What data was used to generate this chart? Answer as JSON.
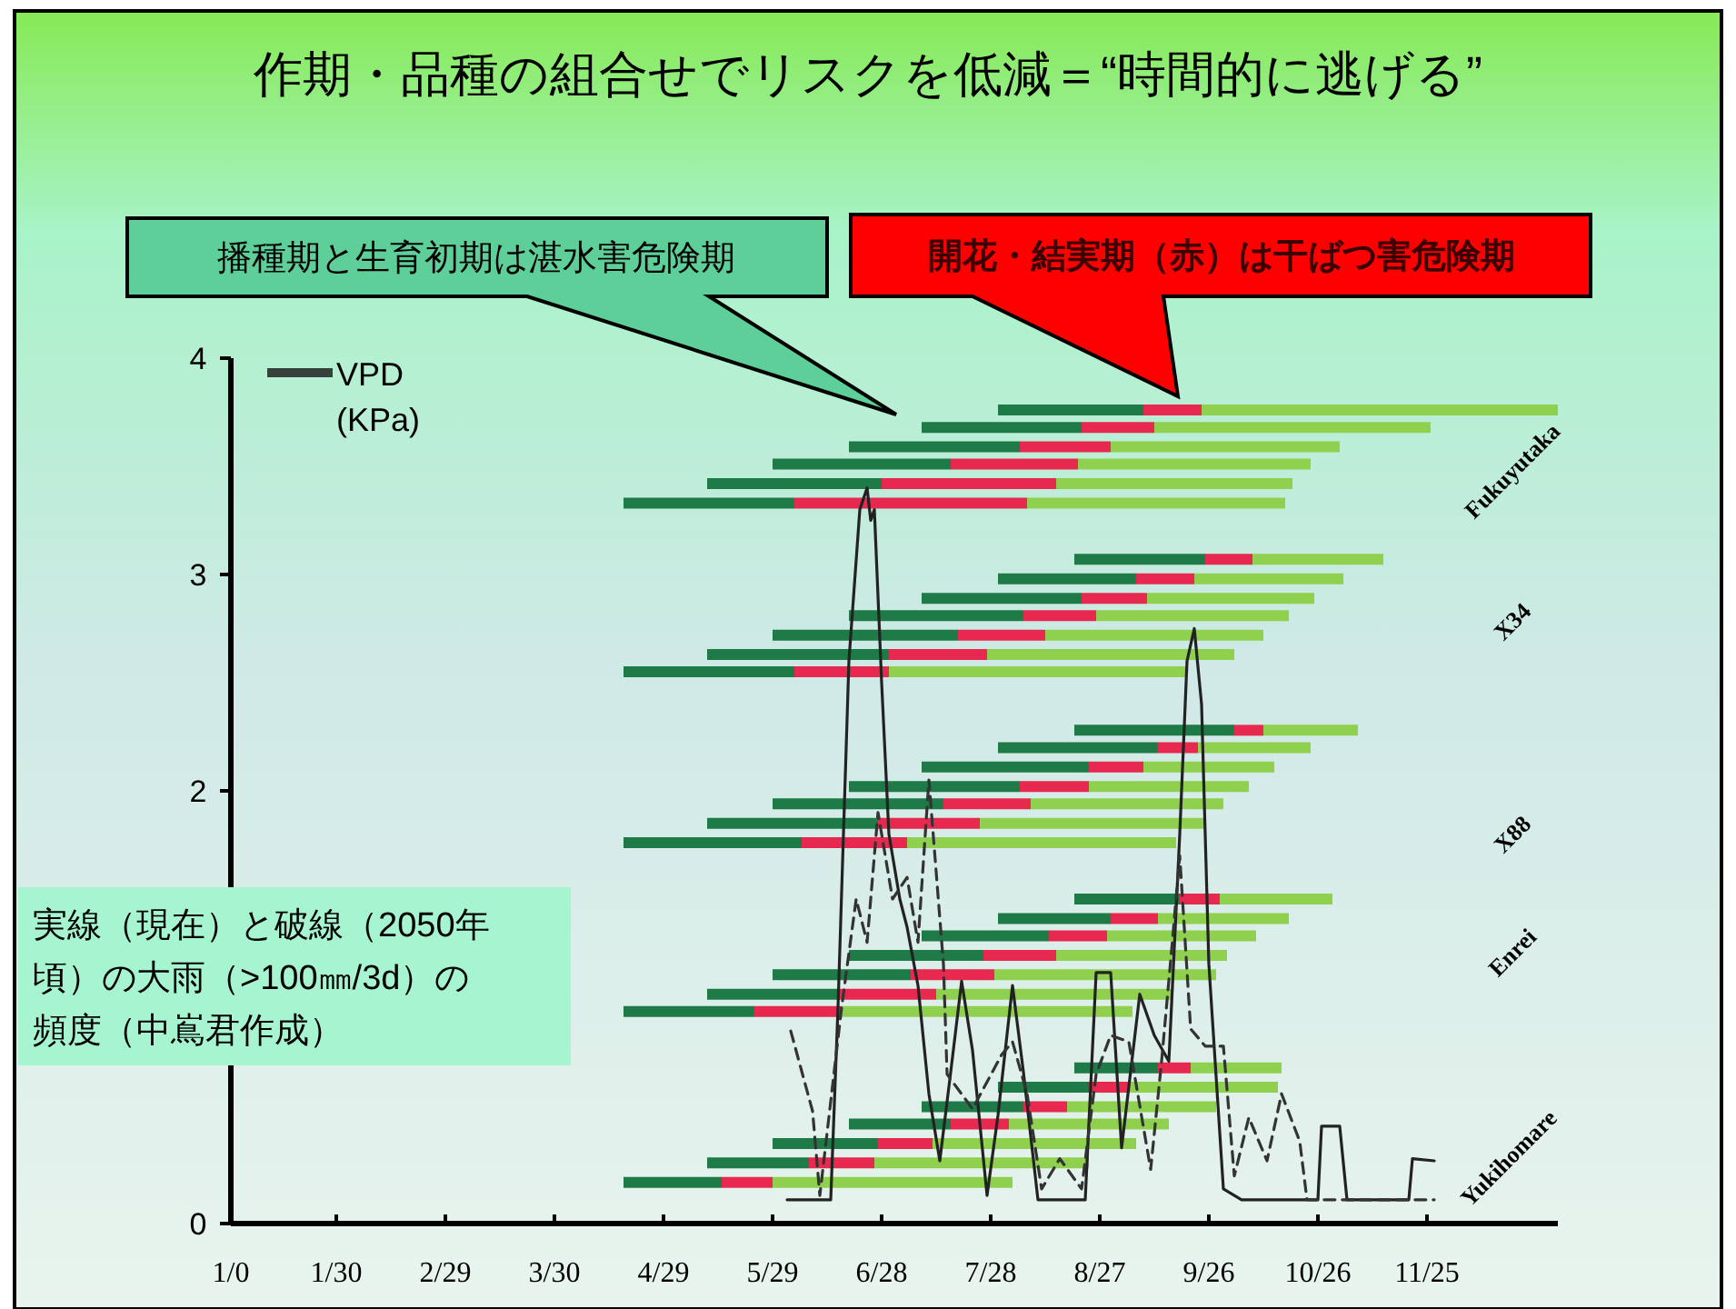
{
  "chart_data": {
    "type": "line",
    "title": "作期・品種の組合せでリスクを低減＝“時間的に逃げる”",
    "xlim": [
      "--01-01",
      "--12-31"
    ],
    "xticks": [
      {
        "value": "--01-01",
        "label": "1/0"
      },
      {
        "value": "--01-30",
        "label": "1/30"
      },
      {
        "value": "--02-29",
        "label": "2/29"
      },
      {
        "value": "--03-30",
        "label": "3/30"
      },
      {
        "value": "--04-29",
        "label": "4/29"
      },
      {
        "value": "--05-29",
        "label": "5/29"
      },
      {
        "value": "--06-28",
        "label": "6/28"
      },
      {
        "value": "--07-28",
        "label": "7/28"
      },
      {
        "value": "--08-27",
        "label": "8/27"
      },
      {
        "value": "--09-26",
        "label": "9/26"
      },
      {
        "value": "--10-26",
        "label": "10/26"
      },
      {
        "value": "--11-25",
        "label": "11/25"
      }
    ],
    "ylim": [
      0,
      4
    ],
    "yticks": [
      0,
      2,
      3,
      4
    ],
    "grid": false,
    "legend": "top left",
    "annotations": [
      "播種期と生育初期は湛水害危険期",
      "開花・結実期（赤）は干ばつ害危険期",
      "実線（現在）と破線（2050年頃）の大雨（>100㎜/3d）の頻度（中嶌君作成）",
      "Fukuyutaka",
      "X34",
      "X88",
      "Enrei",
      "Yukihomare"
    ],
    "series": [
      {
        "color": "#1e7a46",
        "x": [
          "--07-30",
          "--09-08"
        ],
        "values": [
          3.76,
          3.76
        ]
      },
      {
        "color": "#e8294f",
        "x": [
          "--09-08",
          "--09-24"
        ],
        "values": [
          3.76,
          3.76
        ]
      },
      {
        "color": "#8fd14f",
        "x": [
          "--09-24",
          "--12-31"
        ],
        "values": [
          3.76,
          3.76
        ]
      },
      {
        "color": "#1e7a46",
        "x": [
          "--07-09",
          "--08-22"
        ],
        "values": [
          3.68,
          3.68
        ]
      },
      {
        "color": "#e8294f",
        "x": [
          "--08-22",
          "--09-11"
        ],
        "values": [
          3.68,
          3.68
        ]
      },
      {
        "color": "#8fd14f",
        "x": [
          "--09-11",
          "--11-26"
        ],
        "values": [
          3.68,
          3.68
        ]
      },
      {
        "color": "#1e7a46",
        "x": [
          "--06-19",
          "--08-05"
        ],
        "values": [
          3.59,
          3.59
        ]
      },
      {
        "color": "#e8294f",
        "x": [
          "--08-05",
          "--08-30"
        ],
        "values": [
          3.59,
          3.59
        ]
      },
      {
        "color": "#8fd14f",
        "x": [
          "--08-30",
          "--11-01"
        ],
        "values": [
          3.59,
          3.59
        ]
      },
      {
        "color": "#1e7a46",
        "x": [
          "--05-29",
          "--07-17"
        ],
        "values": [
          3.51,
          3.51
        ]
      },
      {
        "color": "#e8294f",
        "x": [
          "--07-17",
          "--08-21"
        ],
        "values": [
          3.51,
          3.51
        ]
      },
      {
        "color": "#8fd14f",
        "x": [
          "--08-21",
          "--10-24"
        ],
        "values": [
          3.51,
          3.51
        ]
      },
      {
        "color": "#1e7a46",
        "x": [
          "--05-11",
          "--06-28"
        ],
        "values": [
          3.42,
          3.42
        ]
      },
      {
        "color": "#e8294f",
        "x": [
          "--06-28",
          "--08-15"
        ],
        "values": [
          3.42,
          3.42
        ]
      },
      {
        "color": "#8fd14f",
        "x": [
          "--08-15",
          "--10-19"
        ],
        "values": [
          3.42,
          3.42
        ]
      },
      {
        "color": "#1e7a46",
        "x": [
          "--04-18",
          "--06-04"
        ],
        "values": [
          3.33,
          3.33
        ]
      },
      {
        "color": "#e8294f",
        "x": [
          "--06-04",
          "--08-07"
        ],
        "values": [
          3.33,
          3.33
        ]
      },
      {
        "color": "#8fd14f",
        "x": [
          "--08-07",
          "--10-17"
        ],
        "values": [
          3.33,
          3.33
        ]
      },
      {
        "color": "#1e7a46",
        "x": [
          "--08-20",
          "--09-25"
        ],
        "values": [
          3.07,
          3.07
        ]
      },
      {
        "color": "#e8294f",
        "x": [
          "--09-25",
          "--10-08"
        ],
        "values": [
          3.07,
          3.07
        ]
      },
      {
        "color": "#8fd14f",
        "x": [
          "--10-08",
          "--11-13"
        ],
        "values": [
          3.07,
          3.07
        ]
      },
      {
        "color": "#1e7a46",
        "x": [
          "--07-30",
          "--09-06"
        ],
        "values": [
          2.98,
          2.98
        ]
      },
      {
        "color": "#e8294f",
        "x": [
          "--09-06",
          "--09-22"
        ],
        "values": [
          2.98,
          2.98
        ]
      },
      {
        "color": "#8fd14f",
        "x": [
          "--09-22",
          "--11-02"
        ],
        "values": [
          2.98,
          2.98
        ]
      },
      {
        "color": "#1e7a46",
        "x": [
          "--07-09",
          "--08-22"
        ],
        "values": [
          2.89,
          2.89
        ]
      },
      {
        "color": "#e8294f",
        "x": [
          "--08-22",
          "--09-09"
        ],
        "values": [
          2.89,
          2.89
        ]
      },
      {
        "color": "#8fd14f",
        "x": [
          "--09-09",
          "--10-25"
        ],
        "values": [
          2.89,
          2.89
        ]
      },
      {
        "color": "#1e7a46",
        "x": [
          "--06-19",
          "--08-06"
        ],
        "values": [
          2.81,
          2.81
        ]
      },
      {
        "color": "#e8294f",
        "x": [
          "--08-06",
          "--08-26"
        ],
        "values": [
          2.81,
          2.81
        ]
      },
      {
        "color": "#8fd14f",
        "x": [
          "--08-26",
          "--10-18"
        ],
        "values": [
          2.81,
          2.81
        ]
      },
      {
        "color": "#1e7a46",
        "x": [
          "--05-29",
          "--07-19"
        ],
        "values": [
          2.72,
          2.72
        ]
      },
      {
        "color": "#e8294f",
        "x": [
          "--07-19",
          "--08-12"
        ],
        "values": [
          2.72,
          2.72
        ]
      },
      {
        "color": "#8fd14f",
        "x": [
          "--08-12",
          "--10-11"
        ],
        "values": [
          2.72,
          2.72
        ]
      },
      {
        "color": "#1e7a46",
        "x": [
          "--05-11",
          "--06-30"
        ],
        "values": [
          2.63,
          2.63
        ]
      },
      {
        "color": "#e8294f",
        "x": [
          "--06-30",
          "--07-27"
        ],
        "values": [
          2.63,
          2.63
        ]
      },
      {
        "color": "#8fd14f",
        "x": [
          "--07-27",
          "--10-03"
        ],
        "values": [
          2.63,
          2.63
        ]
      },
      {
        "color": "#1e7a46",
        "x": [
          "--04-18",
          "--06-04"
        ],
        "values": [
          2.55,
          2.55
        ]
      },
      {
        "color": "#e8294f",
        "x": [
          "--06-04",
          "--06-30"
        ],
        "values": [
          2.55,
          2.55
        ]
      },
      {
        "color": "#8fd14f",
        "x": [
          "--06-30",
          "--09-20"
        ],
        "values": [
          2.55,
          2.55
        ]
      },
      {
        "color": "#1e7a46",
        "x": [
          "--08-20",
          "--10-03"
        ],
        "values": [
          2.28,
          2.28
        ]
      },
      {
        "color": "#e8294f",
        "x": [
          "--10-03",
          "--10-11"
        ],
        "values": [
          2.28,
          2.28
        ]
      },
      {
        "color": "#8fd14f",
        "x": [
          "--10-11",
          "--11-06"
        ],
        "values": [
          2.28,
          2.28
        ]
      },
      {
        "color": "#1e7a46",
        "x": [
          "--07-30",
          "--09-12"
        ],
        "values": [
          2.2,
          2.2
        ]
      },
      {
        "color": "#e8294f",
        "x": [
          "--09-12",
          "--09-23"
        ],
        "values": [
          2.2,
          2.2
        ]
      },
      {
        "color": "#8fd14f",
        "x": [
          "--09-23",
          "--10-24"
        ],
        "values": [
          2.2,
          2.2
        ]
      },
      {
        "color": "#1e7a46",
        "x": [
          "--07-09",
          "--08-24"
        ],
        "values": [
          2.11,
          2.11
        ]
      },
      {
        "color": "#e8294f",
        "x": [
          "--08-24",
          "--09-08"
        ],
        "values": [
          2.11,
          2.11
        ]
      },
      {
        "color": "#8fd14f",
        "x": [
          "--09-08",
          "--10-14"
        ],
        "values": [
          2.11,
          2.11
        ]
      },
      {
        "color": "#1e7a46",
        "x": [
          "--06-19",
          "--08-05"
        ],
        "values": [
          2.02,
          2.02
        ]
      },
      {
        "color": "#e8294f",
        "x": [
          "--08-05",
          "--08-24"
        ],
        "values": [
          2.02,
          2.02
        ]
      },
      {
        "color": "#8fd14f",
        "x": [
          "--08-24",
          "--10-07"
        ],
        "values": [
          2.02,
          2.02
        ]
      },
      {
        "color": "#1e7a46",
        "x": [
          "--05-29",
          "--07-15"
        ],
        "values": [
          1.94,
          1.94
        ]
      },
      {
        "color": "#e8294f",
        "x": [
          "--07-15",
          "--08-08"
        ],
        "values": [
          1.94,
          1.94
        ]
      },
      {
        "color": "#8fd14f",
        "x": [
          "--08-08",
          "--09-30"
        ],
        "values": [
          1.94,
          1.94
        ]
      },
      {
        "color": "#1e7a46",
        "x": [
          "--05-11",
          "--06-27"
        ],
        "values": [
          1.85,
          1.85
        ]
      },
      {
        "color": "#e8294f",
        "x": [
          "--06-27",
          "--07-25"
        ],
        "values": [
          1.85,
          1.85
        ]
      },
      {
        "color": "#8fd14f",
        "x": [
          "--07-25",
          "--09-25"
        ],
        "values": [
          1.85,
          1.85
        ]
      },
      {
        "color": "#1e7a46",
        "x": [
          "--04-18",
          "--06-06"
        ],
        "values": [
          1.76,
          1.76
        ]
      },
      {
        "color": "#e8294f",
        "x": [
          "--06-06",
          "--07-05"
        ],
        "values": [
          1.76,
          1.76
        ]
      },
      {
        "color": "#8fd14f",
        "x": [
          "--07-05",
          "--09-17"
        ],
        "values": [
          1.76,
          1.76
        ]
      },
      {
        "color": "#1e7a46",
        "x": [
          "--08-20",
          "--09-18"
        ],
        "values": [
          1.5,
          1.5
        ]
      },
      {
        "color": "#e8294f",
        "x": [
          "--09-18",
          "--09-29"
        ],
        "values": [
          1.5,
          1.5
        ]
      },
      {
        "color": "#8fd14f",
        "x": [
          "--09-29",
          "--10-30"
        ],
        "values": [
          1.5,
          1.5
        ]
      },
      {
        "color": "#1e7a46",
        "x": [
          "--07-30",
          "--08-30"
        ],
        "values": [
          1.41,
          1.41
        ]
      },
      {
        "color": "#e8294f",
        "x": [
          "--08-30",
          "--09-12"
        ],
        "values": [
          1.41,
          1.41
        ]
      },
      {
        "color": "#8fd14f",
        "x": [
          "--09-12",
          "--10-18"
        ],
        "values": [
          1.41,
          1.41
        ]
      },
      {
        "color": "#1e7a46",
        "x": [
          "--07-09",
          "--08-13"
        ],
        "values": [
          1.33,
          1.33
        ]
      },
      {
        "color": "#e8294f",
        "x": [
          "--08-13",
          "--08-29"
        ],
        "values": [
          1.33,
          1.33
        ]
      },
      {
        "color": "#8fd14f",
        "x": [
          "--08-29",
          "--10-09"
        ],
        "values": [
          1.33,
          1.33
        ]
      },
      {
        "color": "#1e7a46",
        "x": [
          "--06-19",
          "--07-26"
        ],
        "values": [
          1.24,
          1.24
        ]
      },
      {
        "color": "#e8294f",
        "x": [
          "--07-26",
          "--08-15"
        ],
        "values": [
          1.24,
          1.24
        ]
      },
      {
        "color": "#8fd14f",
        "x": [
          "--08-15",
          "--10-01"
        ],
        "values": [
          1.24,
          1.24
        ]
      },
      {
        "color": "#1e7a46",
        "x": [
          "--05-29",
          "--07-06"
        ],
        "values": [
          1.15,
          1.15
        ]
      },
      {
        "color": "#e8294f",
        "x": [
          "--07-06",
          "--07-29"
        ],
        "values": [
          1.15,
          1.15
        ]
      },
      {
        "color": "#8fd14f",
        "x": [
          "--07-29",
          "--09-28"
        ],
        "values": [
          1.15,
          1.15
        ]
      },
      {
        "color": "#1e7a46",
        "x": [
          "--05-11",
          "--06-16"
        ],
        "values": [
          1.06,
          1.06
        ]
      },
      {
        "color": "#e8294f",
        "x": [
          "--06-16",
          "--07-13"
        ],
        "values": [
          1.06,
          1.06
        ]
      },
      {
        "color": "#8fd14f",
        "x": [
          "--07-13",
          "--09-16"
        ],
        "values": [
          1.06,
          1.06
        ]
      },
      {
        "color": "#1e7a46",
        "x": [
          "--04-18",
          "--05-24"
        ],
        "values": [
          0.98,
          0.98
        ]
      },
      {
        "color": "#e8294f",
        "x": [
          "--05-24",
          "--06-17"
        ],
        "values": [
          0.98,
          0.98
        ]
      },
      {
        "color": "#8fd14f",
        "x": [
          "--06-17",
          "--09-05"
        ],
        "values": [
          0.98,
          0.98
        ]
      },
      {
        "color": "#1e7a46",
        "x": [
          "--08-20",
          "--09-12"
        ],
        "values": [
          0.72,
          0.72
        ]
      },
      {
        "color": "#e8294f",
        "x": [
          "--09-12",
          "--09-21"
        ],
        "values": [
          0.72,
          0.72
        ]
      },
      {
        "color": "#8fd14f",
        "x": [
          "--09-21",
          "--10-16"
        ],
        "values": [
          0.72,
          0.72
        ]
      },
      {
        "color": "#1e7a46",
        "x": [
          "--07-30",
          "--08-24"
        ],
        "values": [
          0.63,
          0.63
        ]
      },
      {
        "color": "#e8294f",
        "x": [
          "--08-24",
          "--09-04"
        ],
        "values": [
          0.63,
          0.63
        ]
      },
      {
        "color": "#8fd14f",
        "x": [
          "--09-04",
          "--10-15"
        ],
        "values": [
          0.63,
          0.63
        ]
      },
      {
        "color": "#1e7a46",
        "x": [
          "--07-09",
          "--08-06"
        ],
        "values": [
          0.54,
          0.54
        ]
      },
      {
        "color": "#e8294f",
        "x": [
          "--08-06",
          "--08-18"
        ],
        "values": [
          0.54,
          0.54
        ]
      },
      {
        "color": "#8fd14f",
        "x": [
          "--08-18",
          "--09-28"
        ],
        "values": [
          0.54,
          0.54
        ]
      },
      {
        "color": "#1e7a46",
        "x": [
          "--06-19",
          "--07-17"
        ],
        "values": [
          0.46,
          0.46
        ]
      },
      {
        "color": "#e8294f",
        "x": [
          "--07-17",
          "--08-02"
        ],
        "values": [
          0.46,
          0.46
        ]
      },
      {
        "color": "#8fd14f",
        "x": [
          "--08-02",
          "--09-15"
        ],
        "values": [
          0.46,
          0.46
        ]
      },
      {
        "color": "#1e7a46",
        "x": [
          "--05-29",
          "--06-27"
        ],
        "values": [
          0.37,
          0.37
        ]
      },
      {
        "color": "#e8294f",
        "x": [
          "--06-27",
          "--07-12"
        ],
        "values": [
          0.37,
          0.37
        ]
      },
      {
        "color": "#8fd14f",
        "x": [
          "--07-12",
          "--09-06"
        ],
        "values": [
          0.37,
          0.37
        ]
      },
      {
        "color": "#1e7a46",
        "x": [
          "--05-11",
          "--06-08"
        ],
        "values": [
          0.28,
          0.28
        ]
      },
      {
        "color": "#e8294f",
        "x": [
          "--06-08",
          "--06-26"
        ],
        "values": [
          0.28,
          0.28
        ]
      },
      {
        "color": "#8fd14f",
        "x": [
          "--06-26",
          "--08-24"
        ],
        "values": [
          0.28,
          0.28
        ]
      },
      {
        "color": "#1e7a46",
        "x": [
          "--04-18",
          "--05-15"
        ],
        "values": [
          0.19,
          0.19
        ]
      },
      {
        "color": "#e8294f",
        "x": [
          "--05-15",
          "--05-29"
        ],
        "values": [
          0.19,
          0.19
        ]
      },
      {
        "color": "#8fd14f",
        "x": [
          "--05-29",
          "--08-03"
        ],
        "values": [
          0.19,
          0.19
        ]
      },
      {
        "name": "VPD (KPa)",
        "color": "#222222",
        "line_style": "solid",
        "x": [
          "--06-02",
          "--06-14",
          "--06-16",
          "--06-19",
          "--06-22",
          "--06-24",
          "--06-25",
          "--06-26",
          "--06-28",
          "--06-30",
          "--07-03",
          "--07-05",
          "--07-08",
          "--07-11",
          "--07-14",
          "--07-17",
          "--07-20",
          "--07-23",
          "--07-27",
          "--07-30",
          "--08-03",
          "--08-06",
          "--08-10",
          "--08-23",
          "--08-26",
          "--08-30",
          "--09-02",
          "--09-07",
          "--09-11",
          "--09-15",
          "--09-18",
          "--09-20",
          "--09-22",
          "--09-24",
          "--09-26",
          "--09-30",
          "--10-05",
          "--10-26",
          "--10-27",
          "--11-01",
          "--11-03",
          "--11-20",
          "--11-21",
          "--11-27"
        ],
        "values": [
          0.11,
          0.11,
          1.0,
          2.6,
          3.3,
          3.4,
          3.25,
          3.3,
          2.5,
          1.8,
          1.5,
          1.37,
          1.1,
          0.6,
          0.29,
          0.7,
          1.12,
          0.8,
          0.13,
          0.5,
          1.1,
          0.7,
          0.11,
          0.11,
          1.16,
          1.16,
          0.35,
          1.06,
          0.87,
          0.75,
          1.8,
          2.6,
          2.75,
          2.4,
          1.2,
          0.16,
          0.11,
          0.11,
          0.45,
          0.45,
          0.11,
          0.11,
          0.3,
          0.29
        ]
      },
      {
        "color": "#333333",
        "line_style": "dashed",
        "x": [
          "--06-03",
          "--06-09",
          "--06-11",
          "--06-17",
          "--06-21",
          "--06-24",
          "--06-27",
          "--07-01",
          "--07-05",
          "--07-08",
          "--07-11",
          "--07-15",
          "--07-16",
          "--07-23",
          "--07-31",
          "--08-03",
          "--08-07",
          "--08-11",
          "--08-16",
          "--08-22",
          "--08-26",
          "--08-30",
          "--09-04",
          "--09-10",
          "--09-13",
          "--09-16",
          "--09-18",
          "--09-21",
          "--09-25",
          "--09-30",
          "--10-03",
          "--10-07",
          "--10-12",
          "--10-16",
          "--10-21",
          "--10-23",
          "--11-27"
        ],
        "values": [
          0.89,
          0.52,
          0.13,
          1.0,
          1.5,
          1.3,
          1.9,
          1.5,
          1.6,
          1.3,
          2.05,
          1.2,
          0.69,
          0.53,
          0.78,
          0.84,
          0.6,
          0.16,
          0.3,
          0.16,
          0.69,
          0.87,
          0.84,
          0.25,
          0.75,
          1.31,
          1.7,
          0.9,
          0.82,
          0.82,
          0.22,
          0.49,
          0.29,
          0.6,
          0.38,
          0.11,
          0.11
        ]
      }
    ]
  }
}
